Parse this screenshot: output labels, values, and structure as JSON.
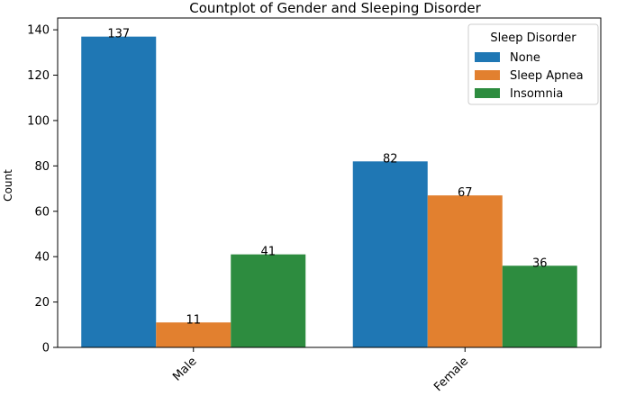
{
  "chart_data": {
    "type": "bar",
    "title": "Countplot of Gender and Sleeping Disorder",
    "xlabel": "",
    "ylabel": "Count",
    "categories": [
      "Male",
      "Female"
    ],
    "series": [
      {
        "name": "None",
        "values": [
          137,
          82
        ],
        "color": "#1f77b4"
      },
      {
        "name": "Sleep Apnea",
        "values": [
          11,
          67
        ],
        "color": "#e2802f"
      },
      {
        "name": "Insomnia",
        "values": [
          41,
          36
        ],
        "color": "#2d8c3f"
      }
    ],
    "ylim": [
      0,
      140
    ],
    "yticks": [
      0,
      20,
      40,
      60,
      80,
      100,
      120,
      140
    ],
    "legend": {
      "title": "Sleep Disorder",
      "position": "top-right"
    },
    "grid": false
  }
}
